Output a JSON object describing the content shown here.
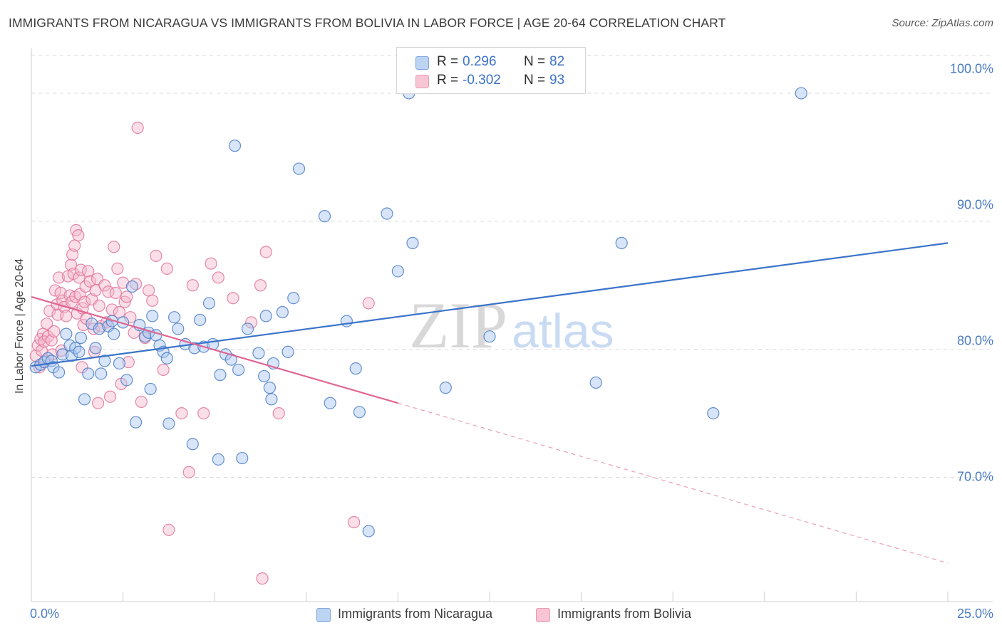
{
  "title": "IMMIGRANTS FROM NICARAGUA VS IMMIGRANTS FROM BOLIVIA IN LABOR FORCE | AGE 20-64 CORRELATION CHART",
  "source": "Source: ZipAtlas.com",
  "colors": {
    "nicaragua": "#4a7cc7",
    "nicaragua_fill": "#a9c6ef",
    "bolivia": "#e0739a",
    "bolivia_fill": "#f4b7cb",
    "tick_text": "#4a7cc7",
    "grid": "#d9d9d9"
  },
  "legend": {
    "rows": [
      {
        "r_label": "R =",
        "r_value": " 0.296",
        "n_label": "N =",
        "n_value": "82"
      },
      {
        "r_label": "R =",
        "r_value": "-0.302",
        "n_label": "N =",
        "n_value": "93"
      }
    ]
  },
  "watermark": {
    "zip": "ZIP",
    "atlas": "atlas"
  },
  "chart_data": {
    "type": "scatter",
    "title": "IMMIGRANTS FROM NICARAGUA VS IMMIGRANTS FROM BOLIVIA IN LABOR FORCE | AGE 20-64 CORRELATION CHART",
    "xlabel": "",
    "ylabel": "In Labor Force | Age 20-64",
    "xlim": [
      0,
      25
    ],
    "ylim": [
      60.3,
      103.5
    ],
    "x_tick_labels": [
      "0.0%",
      "25.0%"
    ],
    "y_ticks": [
      70,
      80,
      90,
      100
    ],
    "y_tick_labels": [
      "70.0%",
      "80.0%",
      "90.0%",
      "100.0%"
    ],
    "grid": "horizontal dashed",
    "legend_position": "top-center",
    "series": [
      {
        "name": "Immigrants from Nicaragua",
        "r": 0.296,
        "n": 82,
        "trend": {
          "x": [
            0,
            25
          ],
          "y": [
            78.7,
            88.3
          ]
        },
        "points": [
          [
            0.12,
            78.6
          ],
          [
            0.25,
            78.8
          ],
          [
            0.35,
            79.0
          ],
          [
            0.45,
            79.3
          ],
          [
            0.55,
            79.1
          ],
          [
            0.6,
            78.6
          ],
          [
            0.75,
            78.2
          ],
          [
            0.85,
            79.6
          ],
          [
            0.95,
            81.2
          ],
          [
            1.05,
            80.3
          ],
          [
            1.1,
            79.5
          ],
          [
            1.2,
            80.1
          ],
          [
            1.3,
            79.8
          ],
          [
            1.35,
            80.9
          ],
          [
            1.45,
            76.1
          ],
          [
            1.55,
            78.1
          ],
          [
            1.65,
            82.0
          ],
          [
            1.75,
            80.1
          ],
          [
            1.85,
            81.6
          ],
          [
            1.9,
            78.1
          ],
          [
            2.0,
            79.1
          ],
          [
            2.1,
            81.8
          ],
          [
            2.2,
            82.2
          ],
          [
            2.25,
            81.2
          ],
          [
            2.4,
            78.9
          ],
          [
            2.5,
            82.1
          ],
          [
            2.6,
            77.6
          ],
          [
            2.75,
            84.9
          ],
          [
            2.85,
            74.3
          ],
          [
            2.95,
            81.9
          ],
          [
            3.1,
            81.0
          ],
          [
            3.2,
            81.3
          ],
          [
            3.25,
            76.9
          ],
          [
            3.3,
            82.6
          ],
          [
            3.4,
            81.1
          ],
          [
            3.5,
            80.3
          ],
          [
            3.6,
            79.8
          ],
          [
            3.7,
            79.3
          ],
          [
            3.75,
            74.2
          ],
          [
            3.9,
            82.5
          ],
          [
            4.0,
            81.6
          ],
          [
            4.2,
            80.4
          ],
          [
            4.4,
            72.6
          ],
          [
            4.45,
            80.1
          ],
          [
            4.6,
            82.3
          ],
          [
            4.7,
            80.2
          ],
          [
            4.85,
            83.6
          ],
          [
            4.95,
            80.4
          ],
          [
            5.1,
            71.4
          ],
          [
            5.15,
            78.0
          ],
          [
            5.3,
            79.6
          ],
          [
            5.45,
            79.2
          ],
          [
            5.55,
            95.9
          ],
          [
            5.65,
            78.4
          ],
          [
            5.75,
            71.5
          ],
          [
            5.9,
            81.6
          ],
          [
            6.2,
            79.7
          ],
          [
            6.35,
            77.9
          ],
          [
            6.4,
            82.6
          ],
          [
            6.5,
            77.0
          ],
          [
            6.55,
            76.1
          ],
          [
            6.6,
            78.9
          ],
          [
            6.85,
            82.9
          ],
          [
            7.0,
            79.8
          ],
          [
            7.15,
            84.0
          ],
          [
            7.3,
            94.1
          ],
          [
            8.0,
            90.4
          ],
          [
            8.15,
            75.8
          ],
          [
            8.6,
            82.2
          ],
          [
            8.85,
            78.5
          ],
          [
            8.95,
            75.1
          ],
          [
            9.2,
            65.8
          ],
          [
            9.7,
            90.6
          ],
          [
            10.0,
            86.1
          ],
          [
            10.4,
            88.3
          ],
          [
            10.3,
            100.0
          ],
          [
            11.3,
            77.0
          ],
          [
            12.5,
            81.0
          ],
          [
            15.4,
            77.4
          ],
          [
            16.1,
            88.3
          ],
          [
            18.6,
            75.0
          ],
          [
            21.0,
            100.0
          ]
        ]
      },
      {
        "name": "Immigrants from Bolivia",
        "r": -0.302,
        "n": 93,
        "trend": {
          "x": [
            0,
            10
          ],
          "y": [
            84.1,
            75.8
          ]
        },
        "trend_dashed": {
          "x": [
            10,
            25
          ],
          "y": [
            75.8,
            63.3
          ]
        },
        "points": [
          [
            0.12,
            79.5
          ],
          [
            0.18,
            80.3
          ],
          [
            0.22,
            78.6
          ],
          [
            0.25,
            80.8
          ],
          [
            0.28,
            79.9
          ],
          [
            0.32,
            81.2
          ],
          [
            0.35,
            80.6
          ],
          [
            0.38,
            79.1
          ],
          [
            0.42,
            82.0
          ],
          [
            0.45,
            81.0
          ],
          [
            0.5,
            83.0
          ],
          [
            0.55,
            80.7
          ],
          [
            0.58,
            79.6
          ],
          [
            0.62,
            81.4
          ],
          [
            0.65,
            84.6
          ],
          [
            0.7,
            83.5
          ],
          [
            0.72,
            82.7
          ],
          [
            0.75,
            85.6
          ],
          [
            0.8,
            84.4
          ],
          [
            0.82,
            79.9
          ],
          [
            0.85,
            83.8
          ],
          [
            0.9,
            83.3
          ],
          [
            0.95,
            82.6
          ],
          [
            1.0,
            85.7
          ],
          [
            1.05,
            84.2
          ],
          [
            1.08,
            86.6
          ],
          [
            1.1,
            83.7
          ],
          [
            1.12,
            87.4
          ],
          [
            1.15,
            85.9
          ],
          [
            1.18,
            88.1
          ],
          [
            1.2,
            84.1
          ],
          [
            1.22,
            89.3
          ],
          [
            1.25,
            82.8
          ],
          [
            1.28,
            88.9
          ],
          [
            1.3,
            85.6
          ],
          [
            1.32,
            84.3
          ],
          [
            1.35,
            86.2
          ],
          [
            1.38,
            78.6
          ],
          [
            1.4,
            83.2
          ],
          [
            1.42,
            81.9
          ],
          [
            1.45,
            83.7
          ],
          [
            1.48,
            84.9
          ],
          [
            1.5,
            82.4
          ],
          [
            1.55,
            86.1
          ],
          [
            1.6,
            85.3
          ],
          [
            1.65,
            83.9
          ],
          [
            1.7,
            81.6
          ],
          [
            1.72,
            79.8
          ],
          [
            1.75,
            84.6
          ],
          [
            1.8,
            85.5
          ],
          [
            1.82,
            75.8
          ],
          [
            1.85,
            83.4
          ],
          [
            1.9,
            81.8
          ],
          [
            2.0,
            85.0
          ],
          [
            2.05,
            82.1
          ],
          [
            2.1,
            84.5
          ],
          [
            2.15,
            76.3
          ],
          [
            2.2,
            83.1
          ],
          [
            2.25,
            88.0
          ],
          [
            2.3,
            84.4
          ],
          [
            2.35,
            86.3
          ],
          [
            2.4,
            82.9
          ],
          [
            2.45,
            77.3
          ],
          [
            2.5,
            85.2
          ],
          [
            2.55,
            83.7
          ],
          [
            2.6,
            84.1
          ],
          [
            2.7,
            82.5
          ],
          [
            2.8,
            81.3
          ],
          [
            2.85,
            85.1
          ],
          [
            2.9,
            97.3
          ],
          [
            3.0,
            75.9
          ],
          [
            3.1,
            80.9
          ],
          [
            3.2,
            84.6
          ],
          [
            3.3,
            83.8
          ],
          [
            3.4,
            87.3
          ],
          [
            3.6,
            78.4
          ],
          [
            3.7,
            86.3
          ],
          [
            3.75,
            65.9
          ],
          [
            4.1,
            75.0
          ],
          [
            4.3,
            70.4
          ],
          [
            4.4,
            85.0
          ],
          [
            4.7,
            75.0
          ],
          [
            4.9,
            86.7
          ],
          [
            5.1,
            85.6
          ],
          [
            5.5,
            84.0
          ],
          [
            6.0,
            82.1
          ],
          [
            6.25,
            85.0
          ],
          [
            6.3,
            62.1
          ],
          [
            6.4,
            87.6
          ],
          [
            6.75,
            75.0
          ],
          [
            8.8,
            66.5
          ],
          [
            9.2,
            83.6
          ],
          [
            2.65,
            79.0
          ]
        ]
      }
    ]
  },
  "bottom_legend": [
    {
      "label": "Immigrants from Nicaragua"
    },
    {
      "label": "Immigrants from Bolivia"
    }
  ]
}
